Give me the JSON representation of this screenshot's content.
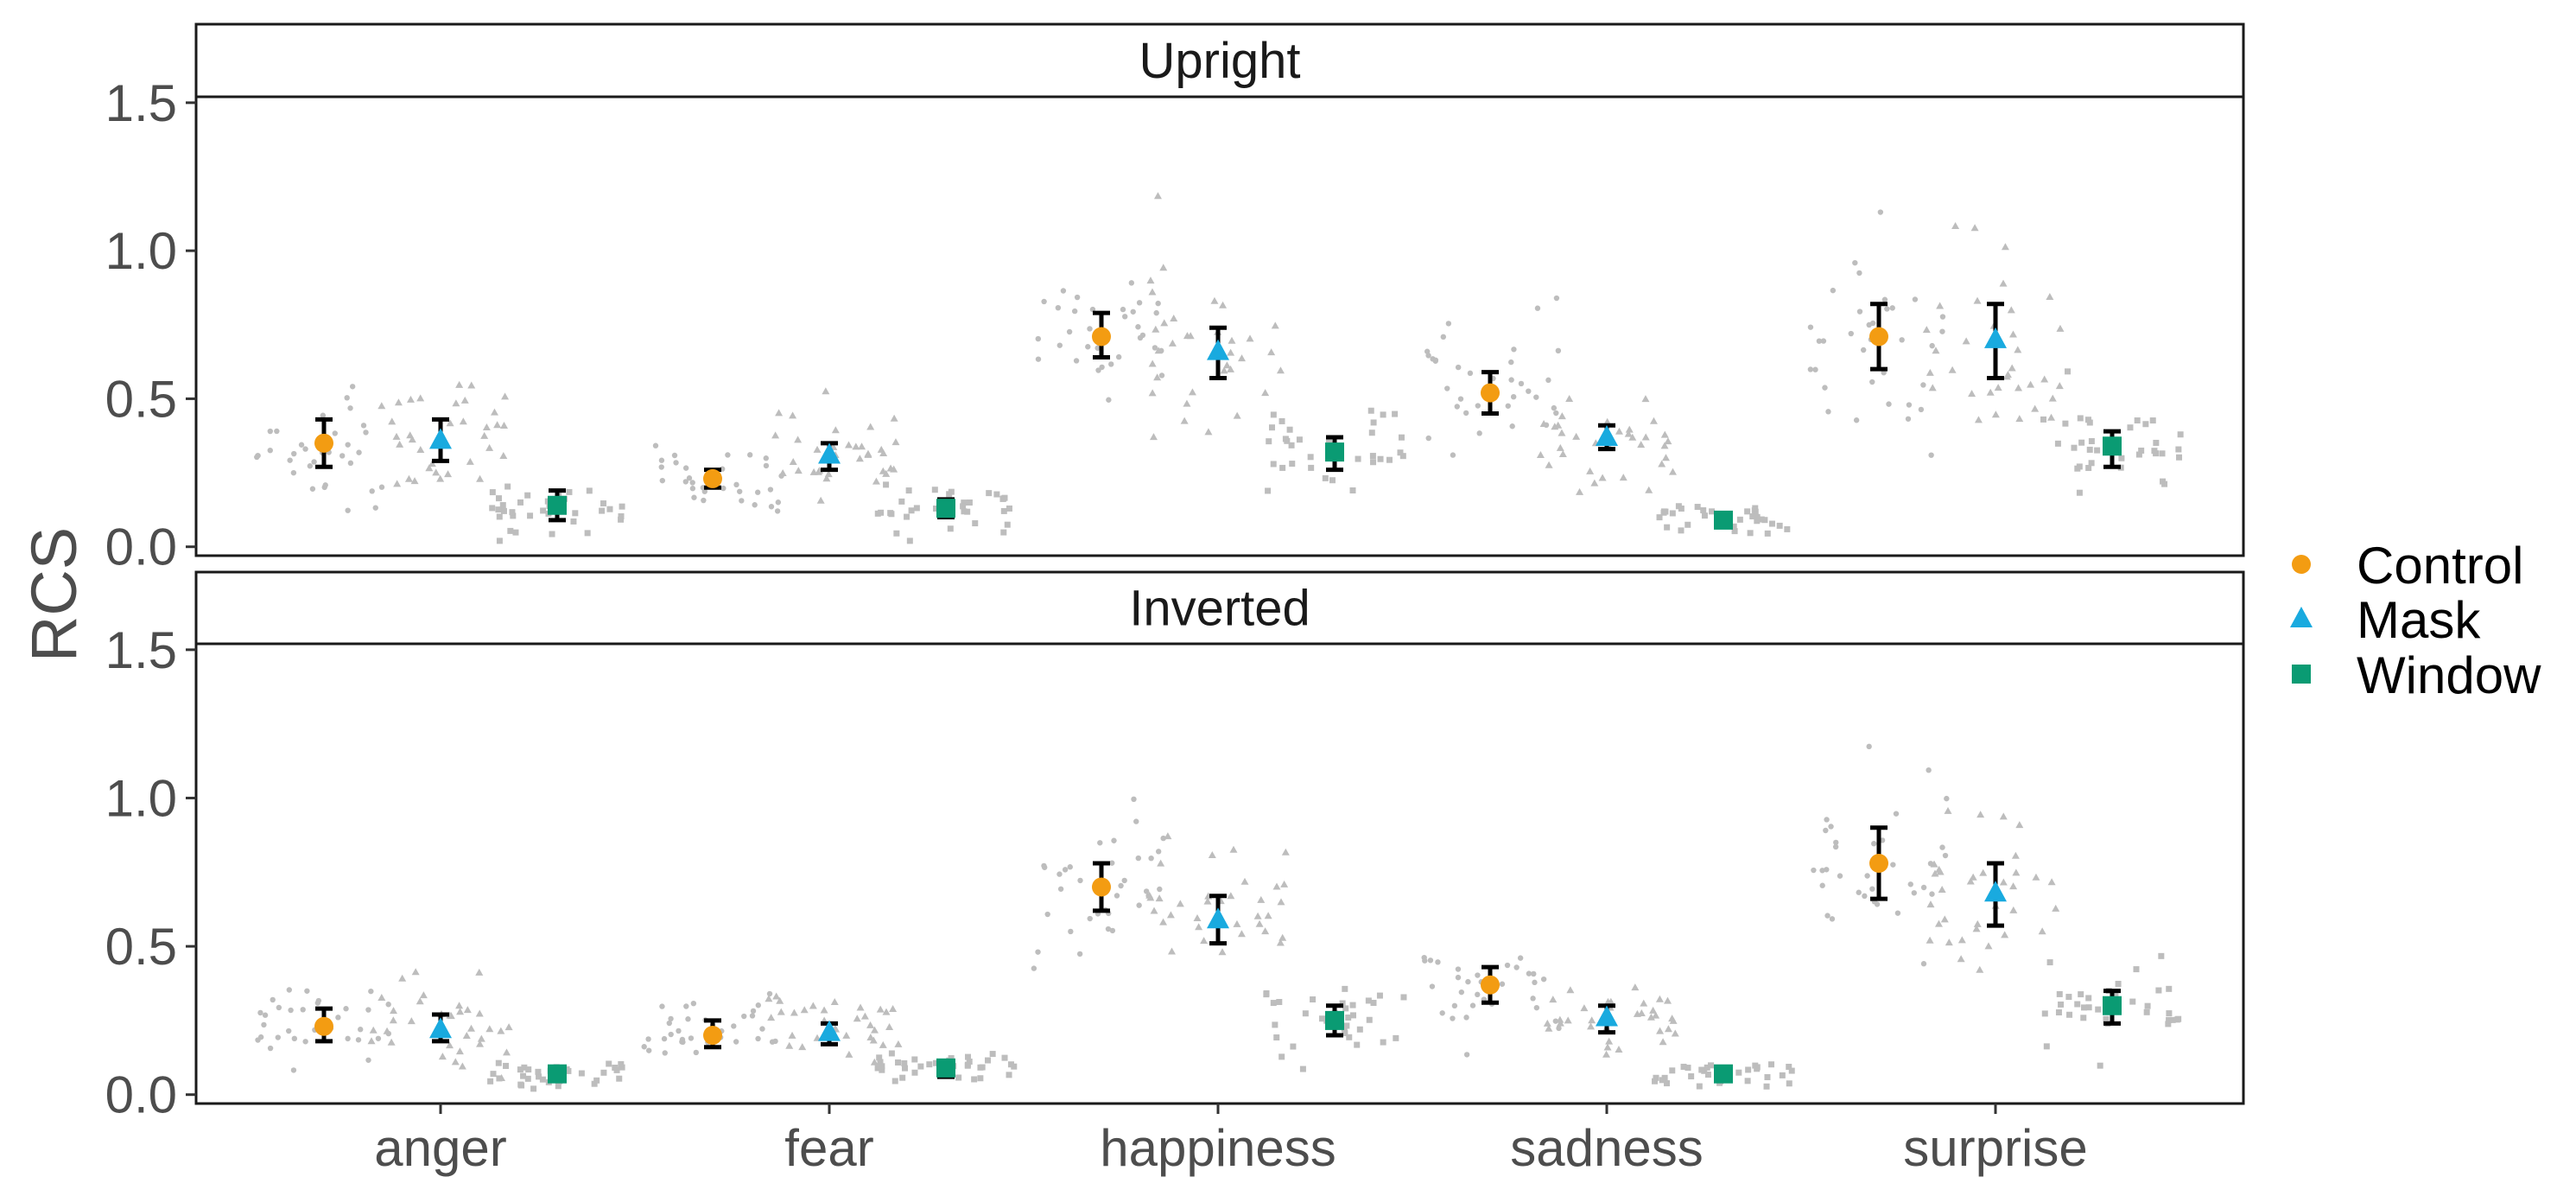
{
  "chart_data": {
    "type": "scatter",
    "ylabel": "RCS",
    "xlabel": "",
    "categories": [
      "anger",
      "fear",
      "happiness",
      "sadness",
      "surprise"
    ],
    "conditions": [
      "Control",
      "Mask",
      "Window"
    ],
    "ylim": [
      -0.03,
      1.52
    ],
    "yticks": [
      0.0,
      0.5,
      1.0,
      1.5
    ],
    "ytick_labels": [
      "0.0",
      "0.5",
      "1.0",
      "1.5"
    ],
    "grid": false,
    "legend_position": "right",
    "colors": {
      "Control": "#F39C12",
      "Mask": "#19AADF",
      "Window": "#0A9B73",
      "raw": "#BDBDBD",
      "errorbar": "#000000"
    },
    "markers": {
      "Control": "circle",
      "Mask": "triangle",
      "Window": "square"
    },
    "panels": [
      {
        "title": "Upright",
        "means": {
          "Control": [
            0.35,
            0.23,
            0.71,
            0.52,
            0.71
          ],
          "Mask": [
            0.36,
            0.31,
            0.66,
            0.37,
            0.7
          ],
          "Window": [
            0.14,
            0.13,
            0.32,
            0.09,
            0.34
          ]
        },
        "ci_low": {
          "Control": [
            0.27,
            0.2,
            0.64,
            0.45,
            0.6
          ],
          "Mask": [
            0.29,
            0.26,
            0.57,
            0.33,
            0.57
          ],
          "Window": [
            0.09,
            0.1,
            0.26,
            0.07,
            0.27
          ]
        },
        "ci_high": {
          "Control": [
            0.43,
            0.26,
            0.79,
            0.59,
            0.82
          ],
          "Mask": [
            0.43,
            0.35,
            0.74,
            0.41,
            0.82
          ],
          "Window": [
            0.19,
            0.16,
            0.37,
            0.11,
            0.39
          ]
        },
        "spread": {
          "Control": [
            0.25,
            0.1,
            0.22,
            0.22,
            0.3
          ],
          "Mask": [
            0.22,
            0.13,
            0.25,
            0.14,
            0.34
          ],
          "Window": [
            0.09,
            0.07,
            0.13,
            0.05,
            0.14
          ]
        }
      },
      {
        "title": "Inverted",
        "means": {
          "Control": [
            0.23,
            0.2,
            0.7,
            0.37,
            0.78
          ],
          "Mask": [
            0.22,
            0.21,
            0.59,
            0.26,
            0.68
          ],
          "Window": [
            0.07,
            0.09,
            0.25,
            0.07,
            0.3
          ]
        },
        "ci_low": {
          "Control": [
            0.18,
            0.16,
            0.62,
            0.31,
            0.66
          ],
          "Mask": [
            0.18,
            0.17,
            0.51,
            0.21,
            0.57
          ],
          "Window": [
            0.05,
            0.06,
            0.2,
            0.05,
            0.24
          ]
        },
        "ci_high": {
          "Control": [
            0.29,
            0.25,
            0.78,
            0.43,
            0.9
          ],
          "Mask": [
            0.27,
            0.24,
            0.67,
            0.3,
            0.78
          ],
          "Window": [
            0.09,
            0.11,
            0.3,
            0.09,
            0.35
          ]
        },
        "spread": {
          "Control": [
            0.14,
            0.12,
            0.22,
            0.15,
            0.3
          ],
          "Mask": [
            0.13,
            0.11,
            0.21,
            0.11,
            0.3
          ],
          "Window": [
            0.05,
            0.05,
            0.12,
            0.04,
            0.13
          ]
        }
      }
    ]
  }
}
